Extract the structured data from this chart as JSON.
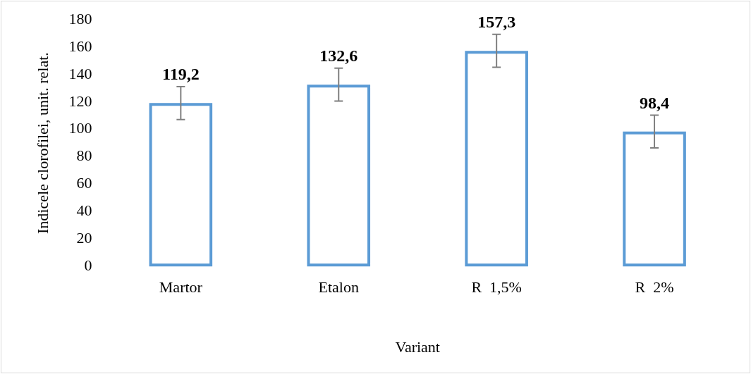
{
  "chart_data": {
    "type": "bar",
    "xlabel": "Variant",
    "ylabel": "Indicele clorofilei, unit. relat.",
    "categories": [
      "Martor",
      "Etalon",
      "R  1,5%",
      "R  2%"
    ],
    "values": [
      119.2,
      132.6,
      157.3,
      98.4
    ],
    "value_labels": [
      "119,2",
      "132,6",
      "157,3",
      "98,4"
    ],
    "errors": [
      12,
      12,
      12,
      12
    ],
    "color": "#5b9bd5",
    "ylim": [
      0,
      180
    ],
    "yticks": [
      0,
      20,
      40,
      60,
      80,
      100,
      120,
      140,
      160,
      180
    ],
    "grid": false,
    "legend": false
  }
}
